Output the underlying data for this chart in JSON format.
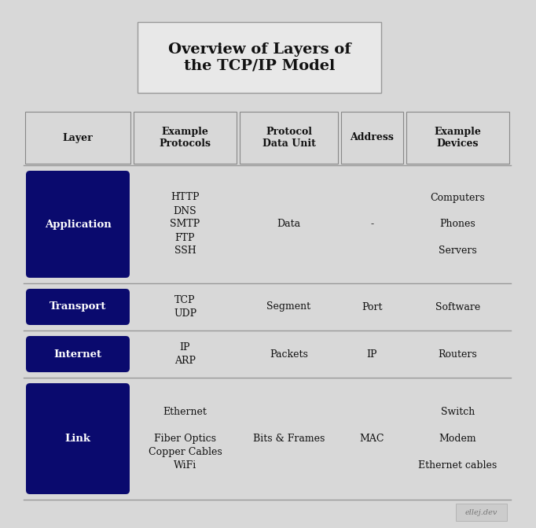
{
  "title": "Overview of Layers of\nthe TCP/IP Model",
  "background_color": "#d8d8d8",
  "header_border_color": "#888888",
  "row_line_color": "#999999",
  "layer_box_color": "#0a0a6e",
  "layer_text_color": "#ffffff",
  "headers": [
    "Layer",
    "Example\nProtocols",
    "Protocol\nData Unit",
    "Address",
    "Example\nDevices"
  ],
  "layers": [
    {
      "name": "Application",
      "protocols": "HTTP\nDNS\nSMTP\nFTP\nSSH",
      "pdu": "Data",
      "address": "-",
      "devices": "Computers\n\nPhones\n\nServers"
    },
    {
      "name": "Transport",
      "protocols": "TCP\nUDP",
      "pdu": "Segment",
      "address": "Port",
      "devices": "Software"
    },
    {
      "name": "Internet",
      "protocols": "IP\nARP",
      "pdu": "Packets",
      "address": "IP",
      "devices": "Routers"
    },
    {
      "name": "Link",
      "protocols": "Ethernet\n\nFiber Optics\nCopper Cables\nWiFi",
      "pdu": "Bits & Frames",
      "address": "MAC",
      "devices": "Switch\n\nModem\n\nEthernet cables"
    }
  ],
  "watermark": "ellej.dev",
  "title_box_color": "#e8e8e8",
  "title_border_color": "#999999",
  "table_bg": "#d8d8d8",
  "cell_bg": "#d8d8d8",
  "header_cell_bg": "#d8d8d8"
}
